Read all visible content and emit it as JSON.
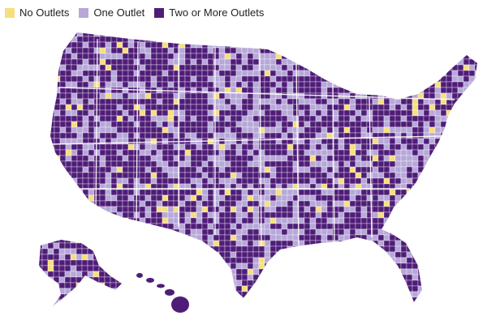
{
  "legend": {
    "items": [
      {
        "key": "none",
        "label": "No Outlets",
        "color": "#f6df7f"
      },
      {
        "key": "one",
        "label": "One Outlet",
        "color": "#b7a8d9"
      },
      {
        "key": "two",
        "label": "Two or More Outlets",
        "color": "#4f1d78"
      }
    ]
  },
  "map": {
    "regions": [
      "contiguous-us",
      "alaska",
      "hawaii"
    ],
    "boundary_color": "#ffffff"
  }
}
